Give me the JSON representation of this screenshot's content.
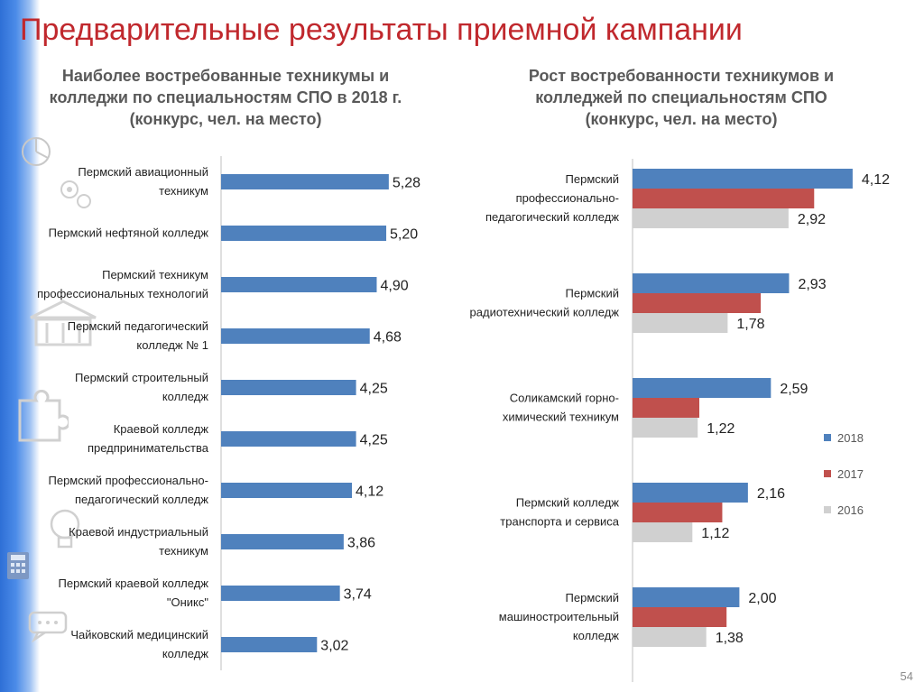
{
  "slide": {
    "title": "Предварительные результаты приемной кампании",
    "page_number": "54"
  },
  "chart_data": [
    {
      "type": "bar",
      "orientation": "horizontal",
      "title_lines": [
        "Наиболее востребованные техникумы и",
        "колледжи  по специальностям СПО в 2018 г.",
        "(конкурс, чел. на место)"
      ],
      "categories": [
        [
          "Пермский авиационный",
          "техникум"
        ],
        [
          "Пермский нефтяной колледж"
        ],
        [
          "Пермский техникум",
          "профессиональных технологий"
        ],
        [
          "Пермский педагогический",
          "колледж № 1"
        ],
        [
          "Пермский строительный",
          "колледж"
        ],
        [
          "Краевой колледж",
          "предпринимательства"
        ],
        [
          "Пермский профессионально-",
          "педагогический колледж"
        ],
        [
          "Краевой индустриальный",
          "техникум"
        ],
        [
          "Пермский краевой колледж",
          "\"Оникс\""
        ],
        [
          "Чайковский медицинский",
          "колледж"
        ]
      ],
      "values": [
        5.28,
        5.2,
        4.9,
        4.68,
        4.25,
        4.25,
        4.12,
        3.86,
        3.74,
        3.02
      ],
      "labels": [
        "5,28",
        "5,20",
        "4,90",
        "4,68",
        "4,25",
        "4,25",
        "4,12",
        "3,86",
        "3,74",
        "3,02"
      ],
      "color": "#4f81bd",
      "xlim": [
        0,
        10
      ],
      "grid": false
    },
    {
      "type": "bar",
      "orientation": "horizontal",
      "title_lines": [
        "Рост востребованности техникумов и",
        "колледжей по специальностям СПО",
        "(конкурс, чел. на место)"
      ],
      "categories": [
        [
          "Пермский",
          "профессионально-",
          "педагогический колледж"
        ],
        [
          "Пермский",
          "радиотехнический колледж"
        ],
        [
          "Соликамский горно-",
          "химический техникум"
        ],
        [
          "Пермский колледж",
          "транспорта и сервиса"
        ],
        [
          "Пермский",
          "машиностроительный",
          "колледж"
        ]
      ],
      "series": [
        {
          "name": "2018",
          "color": "#4f81bd",
          "values": [
            4.12,
            2.93,
            2.59,
            2.16,
            2.0
          ],
          "labels": [
            "4,12",
            "2,93",
            "2,59",
            "2,16",
            "2,00"
          ]
        },
        {
          "name": "2017",
          "color": "#c0504d",
          "values": [
            3.4,
            2.4,
            1.25,
            1.68,
            1.76
          ],
          "labels": [
            "",
            "",
            "",
            "",
            ""
          ]
        },
        {
          "name": "2016",
          "color": "#d0d0d0",
          "values": [
            2.92,
            1.78,
            1.22,
            1.12,
            1.38
          ],
          "labels": [
            "2,92",
            "1,78",
            "1,22",
            "1,12",
            "1,38"
          ]
        }
      ],
      "xlim": [
        0,
        5
      ],
      "legend": "right",
      "grid": false
    }
  ],
  "icons": [
    "pie-chart-icon",
    "gears-icon",
    "building-icon",
    "puzzle-icon",
    "lightbulb-icon",
    "calculator-icon",
    "chat-bubble-icon"
  ]
}
